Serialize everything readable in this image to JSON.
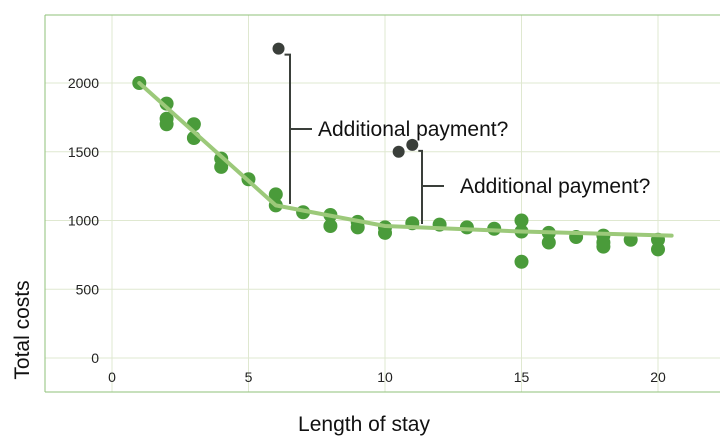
{
  "chart_data": {
    "type": "scatter",
    "title": "",
    "xlabel": "Length of stay",
    "ylabel": "Total costs",
    "xlim": [
      0,
      22
    ],
    "ylim": [
      0,
      2500
    ],
    "x_ticks": [
      "0",
      "5",
      "10",
      "15",
      "20"
    ],
    "y_ticks": [
      "0",
      "500",
      "1000",
      "1500",
      "2000"
    ],
    "x_tick_values": [
      0,
      5,
      10,
      15,
      20
    ],
    "y_tick_values": [
      0,
      500,
      1000,
      1500,
      2000
    ],
    "grid": true,
    "colors": {
      "points": "#4a9b3a",
      "trend": "#9cc97a",
      "outliers": "#3a3f3a",
      "grid": "#dfe8d0",
      "frame": "#8fc27a"
    },
    "series": [
      {
        "values": [
          [
            1,
            2000
          ],
          [
            2,
            1850
          ],
          [
            2,
            1740
          ],
          [
            2,
            1700
          ],
          [
            3,
            1700
          ],
          [
            3,
            1600
          ],
          [
            4,
            1450
          ],
          [
            4,
            1390
          ],
          [
            5,
            1300
          ],
          [
            6,
            1190
          ],
          [
            6,
            1110
          ],
          [
            7,
            1060
          ],
          [
            8,
            1040
          ],
          [
            8,
            960
          ],
          [
            9,
            990
          ],
          [
            9,
            950
          ],
          [
            10,
            950
          ],
          [
            10,
            910
          ],
          [
            11,
            980
          ],
          [
            12,
            970
          ],
          [
            13,
            950
          ],
          [
            14,
            940
          ],
          [
            15,
            1000
          ],
          [
            15,
            920
          ],
          [
            15,
            700
          ],
          [
            16,
            910
          ],
          [
            16,
            840
          ],
          [
            17,
            880
          ],
          [
            18,
            890
          ],
          [
            18,
            840
          ],
          [
            18,
            810
          ],
          [
            19,
            860
          ],
          [
            20,
            860
          ],
          [
            20,
            790
          ]
        ]
      }
    ],
    "trend_line": [
      [
        1,
        2000
      ],
      [
        6,
        1110
      ],
      [
        10,
        960
      ],
      [
        15,
        920
      ],
      [
        20.5,
        890
      ]
    ],
    "outliers": [
      {
        "x": 6.1,
        "y": 2250,
        "label": "Additional payment?"
      },
      {
        "x": 11,
        "y": 1550,
        "label": "Additional payment?"
      },
      {
        "x": 10.5,
        "y": 1500
      }
    ]
  }
}
